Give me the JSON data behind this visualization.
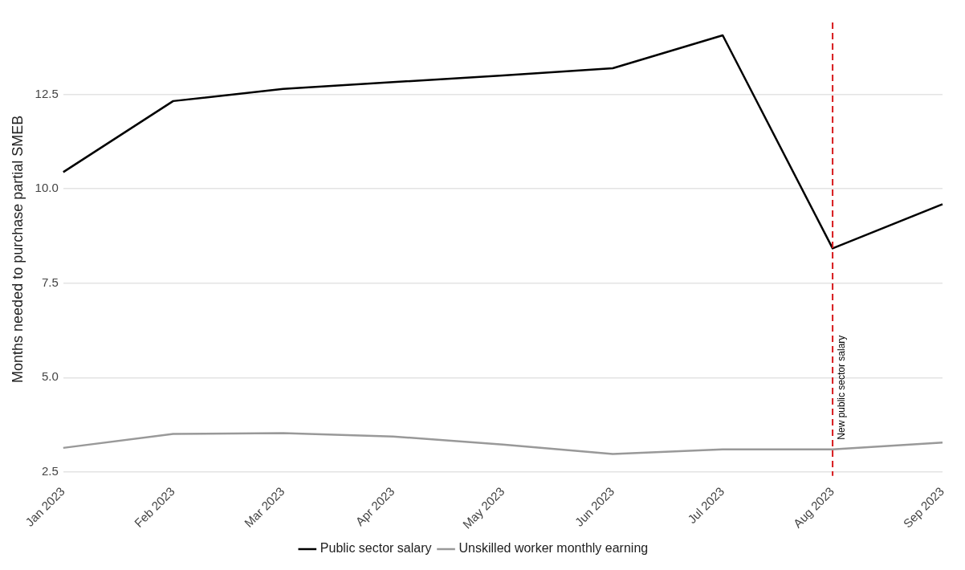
{
  "chart_data": {
    "type": "line",
    "ylabel": "Months needed to purchase partial SMEB",
    "categories": [
      "Jan 2023",
      "Feb 2023",
      "Mar 2023",
      "Apr 2023",
      "May 2023",
      "Jun 2023",
      "Jul 2023",
      "Aug 2023",
      "Sep 2023"
    ],
    "series": [
      {
        "name": "Public sector salary",
        "color": "#000000",
        "values": [
          10.44,
          12.32,
          12.64,
          12.82,
          13.0,
          13.19,
          14.06,
          8.42,
          9.59
        ]
      },
      {
        "name": "Unskilled worker monthly earning",
        "color": "#999999",
        "values": [
          3.14,
          3.51,
          3.53,
          3.44,
          3.23,
          2.98,
          3.1,
          3.1,
          3.28
        ]
      }
    ],
    "ylim": [
      2.4,
      14.4
    ],
    "yticks": [
      {
        "value": 2.5,
        "label": "2.5"
      },
      {
        "value": 5,
        "label": "5.0"
      },
      {
        "value": 7.5,
        "label": "7.5"
      },
      {
        "value": 10,
        "label": "10.0"
      },
      {
        "value": 12.5,
        "label": "12.5"
      }
    ],
    "grid": "y",
    "legend": "bottom",
    "marker": "none",
    "line_style": "solid",
    "ref_lines": [
      {
        "axis": "x",
        "value": "Aug 2023",
        "label": "New public sector salary",
        "color": "#d7191c",
        "line_style": "dashed"
      }
    ]
  }
}
